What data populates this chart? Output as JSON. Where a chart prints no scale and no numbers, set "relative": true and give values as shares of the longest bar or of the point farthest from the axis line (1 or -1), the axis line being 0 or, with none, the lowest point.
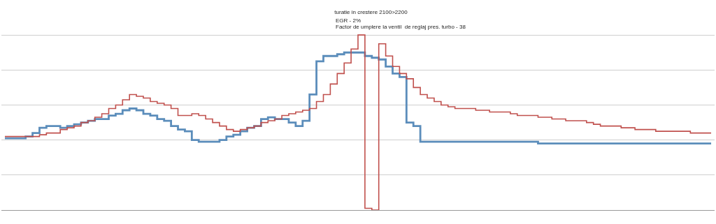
{
  "chart_data": {
    "type": "step",
    "relative": true,
    "title": "turatie in crestere 2100>2200",
    "annotations": [
      "EGR - 2%",
      "Factor de umplere la ventil  de reglaj pres. turbo - 38"
    ],
    "categories": [
      null,
      null,
      null,
      null,
      null,
      null,
      null,
      null,
      null,
      null,
      null,
      null,
      null,
      null,
      null,
      null,
      null,
      null,
      null,
      null,
      null,
      null,
      null,
      null,
      null,
      null,
      null,
      null,
      null,
      null,
      null,
      null,
      null,
      null,
      null,
      null,
      null,
      null,
      null,
      null,
      null,
      null,
      null,
      null,
      null,
      null,
      null,
      null,
      null,
      null,
      null,
      null,
      null,
      null,
      null,
      null,
      null,
      null,
      null,
      null,
      null,
      null,
      null,
      null,
      null,
      null,
      null,
      null,
      null,
      null,
      null,
      null,
      null,
      null,
      null,
      null,
      null,
      null,
      null,
      null,
      null,
      null,
      null,
      null,
      null,
      null,
      null,
      null,
      null,
      null,
      null,
      null,
      null,
      null,
      null,
      null,
      null,
      null,
      null,
      null,
      null,
      null,
      null
    ],
    "series": [
      {
        "color": "#5b8dbb",
        "values": [
          0.41,
          0.41,
          0.41,
          0.42,
          0.44,
          0.47,
          0.48,
          0.48,
          0.47,
          0.48,
          0.49,
          0.5,
          0.51,
          0.52,
          0.52,
          0.54,
          0.55,
          0.57,
          0.58,
          0.57,
          0.55,
          0.54,
          0.52,
          0.51,
          0.48,
          0.46,
          0.45,
          0.4,
          0.39,
          0.39,
          0.39,
          0.4,
          0.42,
          0.43,
          0.45,
          0.47,
          0.48,
          0.52,
          0.53,
          0.52,
          0.52,
          0.5,
          0.48,
          0.51,
          0.66,
          0.85,
          0.88,
          0.88,
          0.89,
          0.9,
          0.9,
          0.9,
          0.88,
          0.87,
          0.86,
          0.82,
          0.78,
          0.76,
          0.5,
          0.48,
          0.39,
          0.39,
          0.39,
          0.39,
          0.39,
          0.39,
          0.39,
          0.39,
          0.39,
          0.39,
          0.39,
          0.39,
          0.39,
          0.39,
          0.39,
          0.39,
          0.39,
          0.38,
          0.38,
          0.38,
          0.38,
          0.38,
          0.38,
          0.38,
          0.38,
          0.38,
          0.38,
          0.38,
          0.38,
          0.38,
          0.38,
          0.38,
          0.38,
          0.38,
          0.38,
          0.38,
          0.38,
          0.38,
          0.38,
          0.38,
          0.38,
          0.38,
          0.38
        ]
      },
      {
        "color": "#c0504d",
        "values": [
          0.42,
          0.42,
          0.42,
          0.42,
          0.42,
          0.43,
          0.44,
          0.44,
          0.46,
          0.47,
          0.48,
          0.5,
          0.51,
          0.53,
          0.55,
          0.58,
          0.6,
          0.63,
          0.66,
          0.65,
          0.64,
          0.62,
          0.61,
          0.6,
          0.58,
          0.54,
          0.54,
          0.55,
          0.54,
          0.52,
          0.5,
          0.48,
          0.46,
          0.45,
          0.46,
          0.47,
          0.48,
          0.5,
          0.51,
          0.52,
          0.54,
          0.55,
          0.56,
          0.57,
          0.58,
          0.62,
          0.66,
          0.72,
          0.78,
          0.84,
          0.92,
          1,
          0.01,
          0,
          0.95,
          0.88,
          0.82,
          0.78,
          0.75,
          0.7,
          0.66,
          0.64,
          0.62,
          0.6,
          0.59,
          0.58,
          0.58,
          0.58,
          0.57,
          0.57,
          0.56,
          0.56,
          0.56,
          0.55,
          0.54,
          0.54,
          0.54,
          0.53,
          0.53,
          0.52,
          0.52,
          0.51,
          0.51,
          0.51,
          0.5,
          0.49,
          0.48,
          0.48,
          0.48,
          0.47,
          0.47,
          0.46,
          0.46,
          0.46,
          0.45,
          0.45,
          0.45,
          0.45,
          0.45,
          0.44,
          0.44,
          0.44,
          0.44
        ]
      }
    ],
    "grid": "y"
  }
}
